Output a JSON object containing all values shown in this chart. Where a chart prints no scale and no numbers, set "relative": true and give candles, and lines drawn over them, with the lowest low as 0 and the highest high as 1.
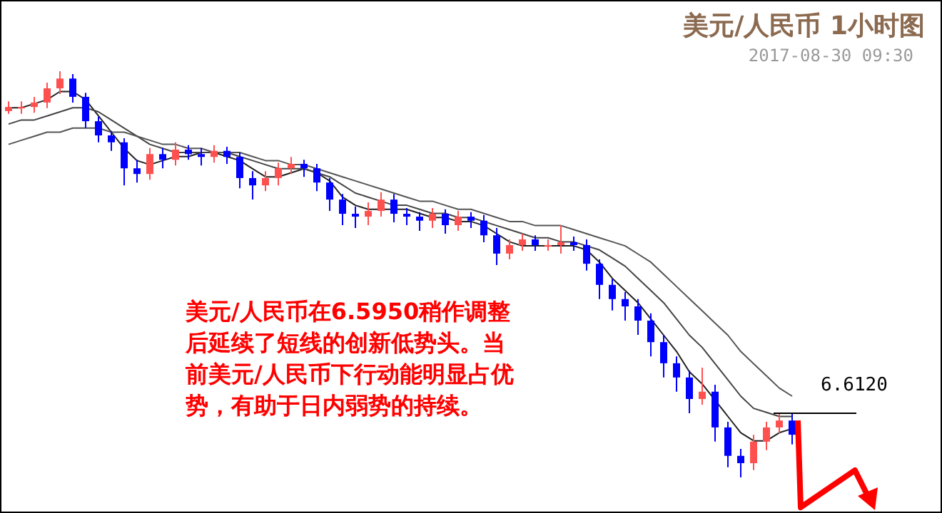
{
  "chart_data": {
    "type": "candlestick",
    "title": "美元/人民币 1小时图",
    "subtitle": "2017-08-30 09:30",
    "relative": true,
    "categories": [
      null,
      null,
      null,
      null,
      null,
      null,
      null,
      null,
      null,
      null,
      null,
      null,
      null,
      null,
      null,
      null,
      null,
      null,
      null,
      null,
      null,
      null,
      null,
      null,
      null,
      null,
      null,
      null,
      null,
      null,
      null,
      null,
      null,
      null,
      null,
      null,
      null,
      null,
      null,
      null,
      null,
      null,
      null,
      null,
      null,
      null,
      null,
      null,
      null,
      null,
      null,
      null,
      null,
      null,
      null,
      null,
      null,
      null,
      null,
      null,
      null,
      null
    ],
    "ohlc": [
      [
        0.902,
        0.926,
        0.895,
        0.912
      ],
      [
        0.912,
        0.926,
        0.895,
        0.912
      ],
      [
        0.912,
        0.937,
        0.898,
        0.923
      ],
      [
        0.923,
        0.972,
        0.909,
        0.958
      ],
      [
        0.958,
        1.0,
        0.944,
        0.982
      ],
      [
        0.982,
        0.993,
        0.923,
        0.937
      ],
      [
        0.937,
        0.947,
        0.86,
        0.877
      ],
      [
        0.877,
        0.888,
        0.825,
        0.842
      ],
      [
        0.842,
        0.853,
        0.804,
        0.825
      ],
      [
        0.825,
        0.835,
        0.719,
        0.761
      ],
      [
        0.761,
        0.782,
        0.726,
        0.747
      ],
      [
        0.747,
        0.811,
        0.733,
        0.796
      ],
      [
        0.796,
        0.811,
        0.761,
        0.782
      ],
      [
        0.782,
        0.825,
        0.768,
        0.807
      ],
      [
        0.807,
        0.818,
        0.782,
        0.796
      ],
      [
        0.796,
        0.811,
        0.768,
        0.789
      ],
      [
        0.789,
        0.818,
        0.775,
        0.804
      ],
      [
        0.804,
        0.814,
        0.772,
        0.789
      ],
      [
        0.789,
        0.8,
        0.712,
        0.737
      ],
      [
        0.737,
        0.754,
        0.684,
        0.719
      ],
      [
        0.719,
        0.754,
        0.705,
        0.737
      ],
      [
        0.737,
        0.775,
        0.719,
        0.761
      ],
      [
        0.761,
        0.789,
        0.747,
        0.772
      ],
      [
        0.772,
        0.782,
        0.74,
        0.761
      ],
      [
        0.761,
        0.772,
        0.705,
        0.726
      ],
      [
        0.726,
        0.737,
        0.656,
        0.684
      ],
      [
        0.684,
        0.698,
        0.621,
        0.649
      ],
      [
        0.649,
        0.667,
        0.614,
        0.642
      ],
      [
        0.642,
        0.677,
        0.621,
        0.656
      ],
      [
        0.656,
        0.702,
        0.642,
        0.684
      ],
      [
        0.684,
        0.698,
        0.628,
        0.649
      ],
      [
        0.649,
        0.663,
        0.621,
        0.642
      ],
      [
        0.642,
        0.653,
        0.607,
        0.632
      ],
      [
        0.632,
        0.663,
        0.614,
        0.649
      ],
      [
        0.649,
        0.66,
        0.6,
        0.621
      ],
      [
        0.621,
        0.656,
        0.607,
        0.642
      ],
      [
        0.642,
        0.653,
        0.614,
        0.632
      ],
      [
        0.632,
        0.646,
        0.579,
        0.596
      ],
      [
        0.596,
        0.614,
        0.523,
        0.551
      ],
      [
        0.551,
        0.586,
        0.537,
        0.572
      ],
      [
        0.572,
        0.6,
        0.558,
        0.586
      ],
      [
        0.586,
        0.596,
        0.558,
        0.572
      ],
      [
        0.568,
        0.586,
        0.558,
        0.572
      ],
      [
        0.572,
        0.621,
        0.551,
        0.579
      ],
      [
        0.579,
        0.593,
        0.558,
        0.572
      ],
      [
        0.572,
        0.586,
        0.509,
        0.526
      ],
      [
        0.526,
        0.537,
        0.439,
        0.474
      ],
      [
        0.474,
        0.488,
        0.411,
        0.439
      ],
      [
        0.439,
        0.456,
        0.386,
        0.421
      ],
      [
        0.421,
        0.439,
        0.351,
        0.386
      ],
      [
        0.386,
        0.404,
        0.298,
        0.333
      ],
      [
        0.333,
        0.351,
        0.246,
        0.281
      ],
      [
        0.281,
        0.298,
        0.211,
        0.246
      ],
      [
        0.246,
        0.263,
        0.158,
        0.193
      ],
      [
        0.193,
        0.27,
        0.179,
        0.211
      ],
      [
        0.211,
        0.228,
        0.088,
        0.123
      ],
      [
        0.123,
        0.137,
        0.025,
        0.053
      ],
      [
        0.053,
        0.07,
        0.0,
        0.035
      ],
      [
        0.035,
        0.105,
        0.018,
        0.088
      ],
      [
        0.088,
        0.137,
        0.067,
        0.123
      ],
      [
        0.123,
        0.158,
        0.109,
        0.14
      ],
      [
        0.14,
        0.158,
        0.081,
        0.105
      ]
    ],
    "colors": [
      "#ff5050",
      "#ff5050",
      "#ff5050",
      "#ff5050",
      "#ff5050",
      "#0000ff",
      "#0000ff",
      "#0000ff",
      "#0000ff",
      "#0000ff",
      "#0000ff",
      "#ff5050",
      "#0000ff",
      "#ff5050",
      "#0000ff",
      "#0000ff",
      "#ff5050",
      "#0000ff",
      "#0000ff",
      "#0000ff",
      "#ff5050",
      "#ff5050",
      "#ff5050",
      "#0000ff",
      "#0000ff",
      "#0000ff",
      "#0000ff",
      "#0000ff",
      "#ff5050",
      "#ff5050",
      "#0000ff",
      "#0000ff",
      "#0000ff",
      "#ff5050",
      "#0000ff",
      "#ff5050",
      "#0000ff",
      "#0000ff",
      "#0000ff",
      "#ff5050",
      "#ff5050",
      "#0000ff",
      "#ff5050",
      "#ff5050",
      "#0000ff",
      "#0000ff",
      "#0000ff",
      "#0000ff",
      "#0000ff",
      "#0000ff",
      "#0000ff",
      "#0000ff",
      "#0000ff",
      "#0000ff",
      "#ff5050",
      "#0000ff",
      "#0000ff",
      "#0000ff",
      "#ff5050",
      "#ff5050",
      "#ff5050",
      "#0000ff"
    ],
    "series": [
      {
        "type": "line",
        "color": "#222222",
        "values": [
          0.91,
          0.91,
          0.92,
          0.93,
          0.95,
          0.95,
          0.93,
          0.89,
          0.85,
          0.81,
          0.78,
          0.77,
          0.78,
          0.79,
          0.79,
          0.8,
          0.8,
          0.79,
          0.78,
          0.76,
          0.74,
          0.74,
          0.75,
          0.76,
          0.75,
          0.73,
          0.69,
          0.67,
          0.66,
          0.66,
          0.66,
          0.66,
          0.65,
          0.64,
          0.64,
          0.63,
          0.63,
          0.62,
          0.6,
          0.58,
          0.57,
          0.57,
          0.57,
          0.57,
          0.57,
          0.56,
          0.53,
          0.49,
          0.46,
          0.43,
          0.39,
          0.35,
          0.31,
          0.26,
          0.23,
          0.19,
          0.15,
          0.11,
          0.09,
          0.09,
          0.11,
          0.12
        ]
      },
      {
        "type": "line",
        "color": "#444444",
        "values": [
          0.87,
          0.88,
          0.88,
          0.89,
          0.9,
          0.91,
          0.91,
          0.9,
          0.88,
          0.86,
          0.84,
          0.82,
          0.81,
          0.8,
          0.8,
          0.8,
          0.8,
          0.8,
          0.79,
          0.78,
          0.77,
          0.76,
          0.76,
          0.76,
          0.75,
          0.74,
          0.72,
          0.7,
          0.69,
          0.68,
          0.67,
          0.67,
          0.66,
          0.65,
          0.65,
          0.64,
          0.64,
          0.63,
          0.62,
          0.61,
          0.6,
          0.59,
          0.59,
          0.58,
          0.58,
          0.57,
          0.56,
          0.54,
          0.52,
          0.49,
          0.46,
          0.43,
          0.39,
          0.35,
          0.32,
          0.28,
          0.24,
          0.2,
          0.17,
          0.16,
          0.15,
          0.15
        ]
      },
      {
        "type": "line",
        "color": "#555555",
        "values": [
          0.82,
          0.83,
          0.84,
          0.85,
          0.85,
          0.86,
          0.86,
          0.86,
          0.85,
          0.85,
          0.84,
          0.83,
          0.82,
          0.82,
          0.81,
          0.81,
          0.8,
          0.8,
          0.8,
          0.79,
          0.78,
          0.78,
          0.77,
          0.77,
          0.76,
          0.75,
          0.74,
          0.73,
          0.72,
          0.71,
          0.7,
          0.69,
          0.68,
          0.68,
          0.67,
          0.66,
          0.66,
          0.65,
          0.64,
          0.63,
          0.63,
          0.62,
          0.62,
          0.62,
          0.61,
          0.6,
          0.59,
          0.58,
          0.57,
          0.55,
          0.53,
          0.5,
          0.47,
          0.44,
          0.41,
          0.38,
          0.35,
          0.31,
          0.28,
          0.25,
          0.22,
          0.2
        ]
      }
    ],
    "annotations": [
      "美元/人民币在6.5950稍作调整后延续了短线的创新低势头。当前美元/人民币下行动能明显占优势，有助于日内弱势的持续。",
      "6.6120"
    ]
  }
}
